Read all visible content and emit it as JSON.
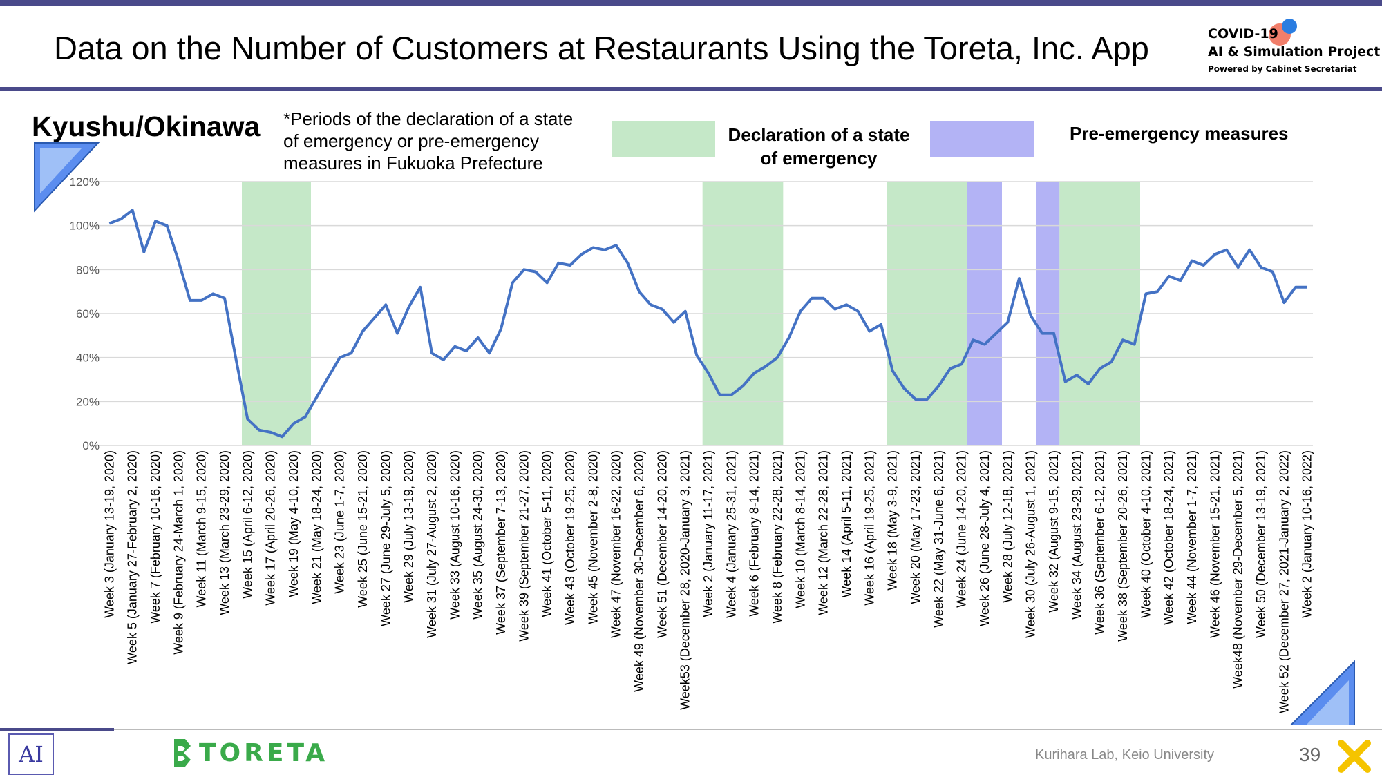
{
  "page": {
    "title": "Data on the Number of Customers at Restaurants Using the Toreta, Inc. App",
    "region": "Kyushu/Okinawa",
    "note_lines": [
      "*Periods of the declaration of a state",
      "of emergency or pre-emergency",
      "measures in Fukuoka Prefecture"
    ],
    "legend": {
      "emergency_lines": [
        "Declaration of a state",
        "of emergency"
      ],
      "emergency_color": "#c5e8c8",
      "pre_emergency": "Pre-emergency measures",
      "pre_emergency_color": "#b3b3f5"
    },
    "logo": {
      "line1": "COVID-19",
      "line2": "AI & Simulation Project",
      "line3": "Powered by Cabinet Secretariat"
    },
    "footer": {
      "brand": "TORETA",
      "credit": "Kurihara Lab, Keio University",
      "page_number": "39",
      "ai_logo": "AI"
    }
  },
  "chart_data": {
    "type": "line",
    "line_color": "#4472c4",
    "y_ticks": [
      "0%",
      "20%",
      "40%",
      "60%",
      "80%",
      "100%",
      "120%"
    ],
    "ylim": [
      0,
      120
    ],
    "grid": true,
    "x_labels": [
      "Week 3 (January 13-19, 2020)",
      "Week 5 (January 27-February 2, 2020)",
      "Week 7 (February 10-16, 2020)",
      "Week 9 (February 24-March 1, 2020)",
      "Week 11 (March 9-15, 2020)",
      "Week 13 (March 23-29, 2020)",
      "Week 15 (April 6-12, 2020)",
      "Week 17 (April 20-26, 2020)",
      "Week 19 (May 4-10, 2020)",
      "Week 21 (May 18-24, 2020)",
      "Week 23 (June 1-7, 2020)",
      "Week 25 (June 15-21, 2020)",
      "Week 27 (June 29-July 5, 2020)",
      "Week 29 (July 13-19, 2020)",
      "Week 31 (July 27-August 2, 2020)",
      "Week 33 (August 10-16, 2020)",
      "Week 35 (August 24-30, 2020)",
      "Week 37 (September 7-13, 2020)",
      "Week 39 (September 21-27, 2020)",
      "Week 41 (October 5-11, 2020)",
      "Week 43 (October 19-25, 2020)",
      "Week 45 (November 2-8, 2020)",
      "Week 47 (November 16-22, 2020)",
      "Week 49 (November 30-December 6, 2020)",
      "Week 51 (December 14-20, 2020)",
      "Week53 (December 28, 2020-January 3, 2021)",
      "Week 2 (January 11-17, 2021)",
      "Week 4 (January 25-31, 2021)",
      "Week 6 (February 8-14, 2021)",
      "Week 8 (February 22-28, 2021)",
      "Week 10 (March 8-14, 2021)",
      "Week 12 (March 22-28, 2021)",
      "Week 14 (April 5-11, 2021)",
      "Week 16 (April 19-25, 2021)",
      "Week 18 (May 3-9, 2021)",
      "Week 20 (May 17-23, 2021)",
      "Week 22 (May 31-June 6, 2021)",
      "Week 24 (June 14-20, 2021)",
      "Week 26 (June 28-July 4, 2021)",
      "Week 28 (July 12-18, 2021)",
      "Week 30 (July 26-August 1, 2021)",
      "Week 32 (August 9-15, 2021)",
      "Week 34 (August 23-29, 2021)",
      "Week 36 (September 6-12, 2021)",
      "Week 38 (September 20-26, 2021)",
      "Week 40 (October 4-10, 2021)",
      "Week 42 (October 18-24, 2021)",
      "Week 44 (November 1-7, 2021)",
      "Week 46 (November 15-21, 2021)",
      "Week48 (November 29-December 5, 2021)",
      "Week 50 (December 13-19, 2021)",
      "Week 52 (December 27, 2021-January 2, 2022)",
      "Week 2 (January 10-16, 2022)"
    ],
    "values": [
      101,
      103,
      107,
      88,
      102,
      100,
      84,
      66,
      66,
      69,
      67,
      39,
      12,
      7,
      6,
      4,
      10,
      13,
      22,
      31,
      40,
      42,
      52,
      58,
      64,
      51,
      63,
      72,
      42,
      39,
      45,
      43,
      49,
      42,
      53,
      74,
      80,
      79,
      74,
      83,
      82,
      87,
      90,
      89,
      91,
      83,
      70,
      64,
      62,
      56,
      61,
      41,
      33,
      23,
      23,
      27,
      33,
      36,
      40,
      49,
      61,
      67,
      67,
      62,
      64,
      61,
      52,
      55,
      34,
      26,
      21,
      21,
      27,
      35,
      37,
      48,
      46,
      51,
      56,
      76,
      59,
      51,
      51,
      29,
      32,
      28,
      35,
      38,
      48,
      46,
      69,
      70,
      77,
      75,
      84,
      82,
      87,
      89,
      81,
      89,
      81,
      79,
      65,
      72,
      72
    ],
    "shaded_periods": [
      {
        "type": "emergency",
        "start": 12,
        "end": 17
      },
      {
        "type": "emergency",
        "start": 52,
        "end": 58
      },
      {
        "type": "emergency",
        "start": 68,
        "end": 74
      },
      {
        "type": "pre_emergency",
        "start": 75,
        "end": 77
      },
      {
        "type": "pre_emergency",
        "start": 81,
        "end": 82
      },
      {
        "type": "emergency",
        "start": 83,
        "end": 89
      }
    ]
  }
}
